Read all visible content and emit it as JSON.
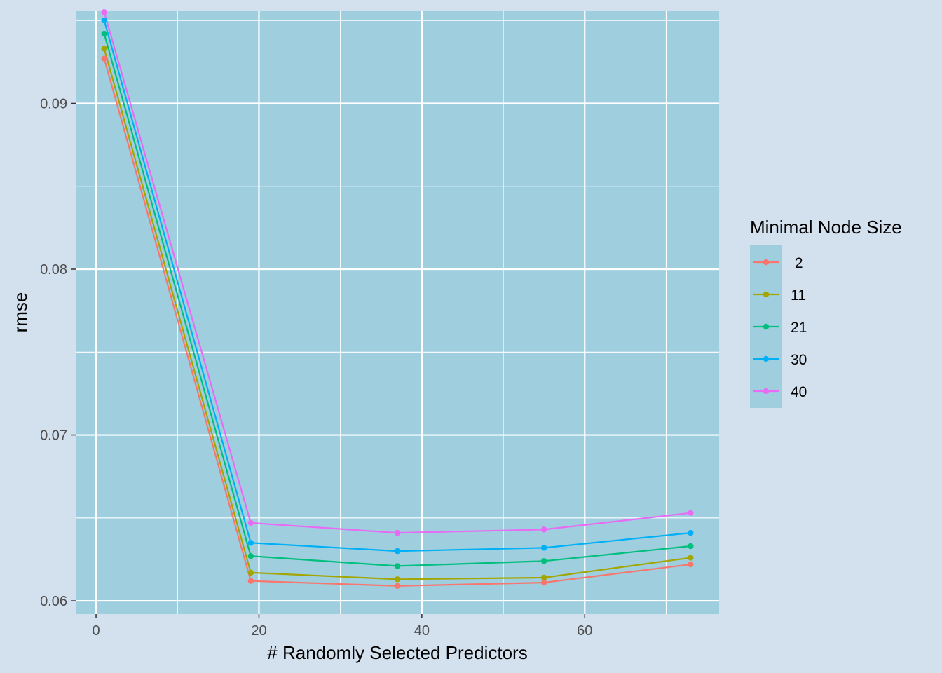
{
  "chart_data": {
    "type": "line",
    "xlabel": "# Randomly Selected Predictors",
    "ylabel": "rmse",
    "xlim": [
      -2.5,
      76.5
    ],
    "ylim": [
      0.0592,
      0.0956
    ],
    "x_ticks": [
      0,
      20,
      40,
      60
    ],
    "y_ticks": [
      0.06,
      0.07,
      0.08,
      0.09
    ],
    "x_tick_labels": [
      "0",
      "20",
      "40",
      "60"
    ],
    "y_tick_labels": [
      "0.06",
      "0.07",
      "0.08",
      "0.09"
    ],
    "grid": true,
    "legend_title": "Minimal Node Size",
    "legend_position": "right",
    "x": [
      1,
      19,
      37,
      55,
      73
    ],
    "series": [
      {
        "name": " 2",
        "color": "#f8766d",
        "values": [
          0.0927,
          0.0612,
          0.0609,
          0.0611,
          0.0622
        ]
      },
      {
        "name": "11",
        "color": "#a3a500",
        "values": [
          0.0933,
          0.0617,
          0.0613,
          0.0614,
          0.0626
        ]
      },
      {
        "name": "21",
        "color": "#00bf7d",
        "values": [
          0.0942,
          0.0627,
          0.0621,
          0.0624,
          0.0633
        ]
      },
      {
        "name": "30",
        "color": "#00b0f6",
        "values": [
          0.095,
          0.0635,
          0.063,
          0.0632,
          0.0641
        ]
      },
      {
        "name": "40",
        "color": "#e76bf3",
        "values": [
          0.0955,
          0.0647,
          0.0641,
          0.0643,
          0.0653
        ]
      }
    ]
  }
}
